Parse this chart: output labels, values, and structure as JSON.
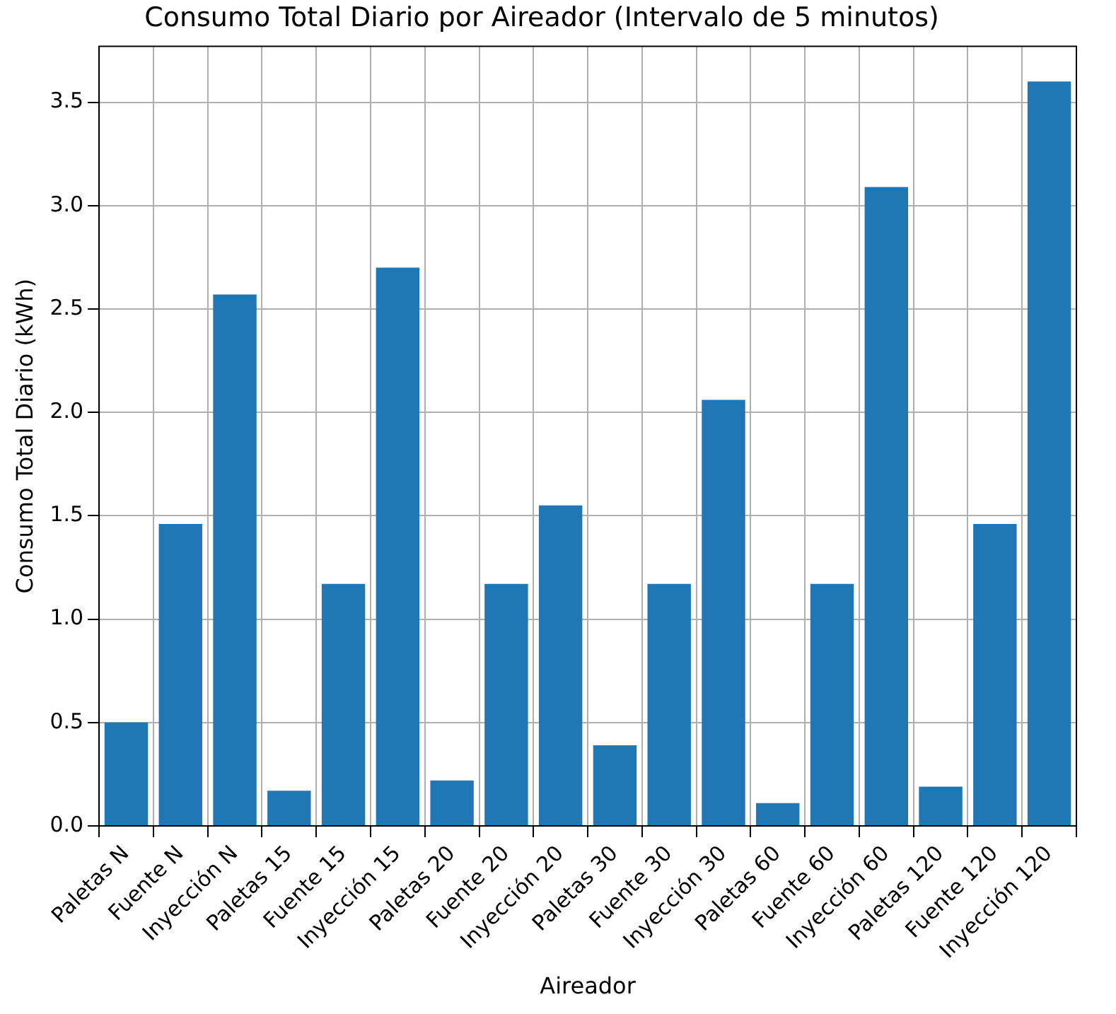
{
  "chart_data": {
    "type": "bar",
    "title": "Consumo Total Diario por Aireador (Intervalo de 5 minutos)",
    "xlabel": "Aireador",
    "ylabel": "Consumo Total Diario (kWh)",
    "categories": [
      "Paletas N",
      "Fuente N",
      "Inyección N",
      "Paletas 15",
      "Fuente 15",
      "Inyección 15",
      "Paletas 20",
      "Fuente 20",
      "Inyección 20",
      "Paletas 30",
      "Fuente 30",
      "Inyección 30",
      "Paletas 60",
      "Fuente 60",
      "Inyección 60",
      "Paletas 120",
      "Fuente 120",
      "Inyección 120"
    ],
    "values": [
      0.5,
      1.46,
      2.57,
      0.17,
      1.17,
      2.7,
      0.22,
      1.17,
      1.55,
      0.39,
      1.17,
      2.06,
      0.11,
      1.17,
      3.09,
      0.19,
      1.46,
      3.6
    ],
    "color": "#1f77b4",
    "ylim": [
      0,
      3.77
    ],
    "yticks": [
      {
        "value": 0,
        "label": "0.0"
      },
      {
        "value": 0.5,
        "label": "0.5"
      },
      {
        "value": 1,
        "label": "1.0"
      },
      {
        "value": 1.5,
        "label": "1.5"
      },
      {
        "value": 2,
        "label": "2.0"
      },
      {
        "value": 2.5,
        "label": "2.5"
      },
      {
        "value": 3,
        "label": "3.0"
      },
      {
        "value": 3.5,
        "label": "3.5"
      }
    ],
    "grid": true
  }
}
